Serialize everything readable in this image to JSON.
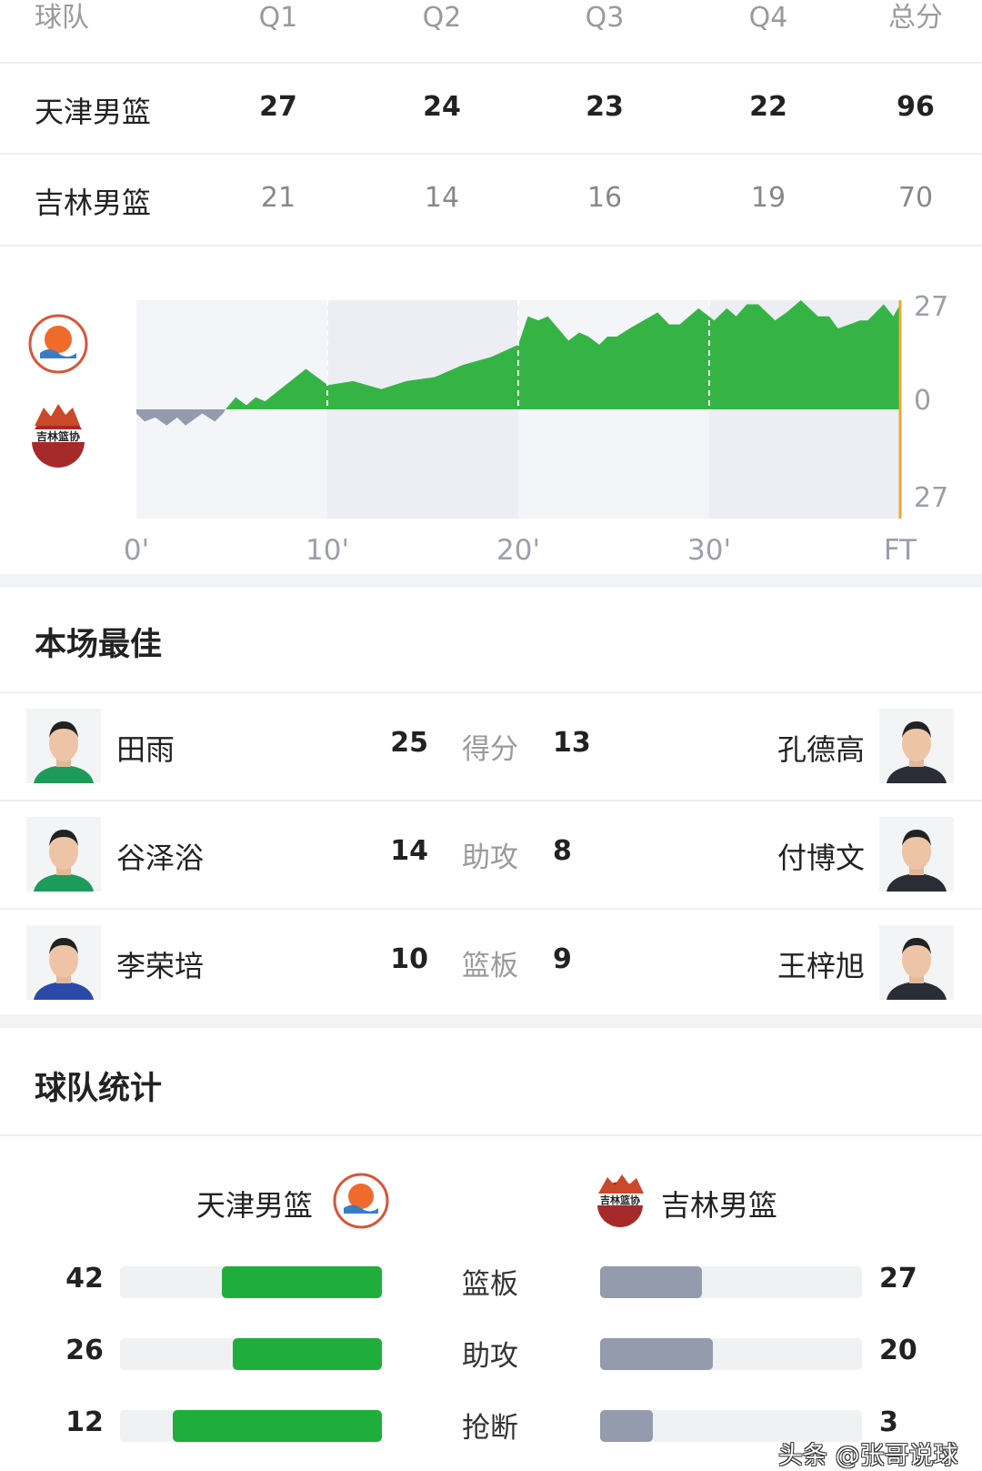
{
  "scoreboard": {
    "headers": [
      "球队",
      "Q1",
      "Q2",
      "Q3",
      "Q4",
      "总分"
    ],
    "rows": [
      {
        "team": "天津男篮",
        "scores": [
          "27",
          "24",
          "23",
          "22",
          "96"
        ]
      },
      {
        "team": "吉林男篮",
        "scores": [
          "21",
          "14",
          "16",
          "19",
          "70"
        ]
      }
    ]
  },
  "chart_data": {
    "type": "area",
    "x_tick_labels": [
      "0'",
      "10'",
      "20'",
      "30'",
      "FT"
    ],
    "y_tick_labels": [
      "27",
      "0",
      "27"
    ],
    "xlim": [
      0,
      40
    ],
    "ylim": [
      -27,
      27
    ],
    "colors": {
      "positive": "#35b445",
      "negative": "#939bad",
      "end_line": "#f0a830"
    },
    "series": [
      {
        "x": [
          0,
          0.43,
          0.99,
          1.58,
          2.14,
          2.57,
          3.45,
          4.11,
          4.54,
          4.67,
          5.2,
          5.76,
          6.25,
          6.74,
          8.88,
          10.03,
          11.35,
          12.83,
          14.14,
          15.63,
          17.1,
          18.6,
          20,
          20.5,
          21.05,
          21.55,
          22.63,
          23.19,
          23.68,
          24.24,
          24.67,
          25.16,
          25.82,
          27.3,
          27.9,
          28.45,
          29.44,
          30.26,
          30.92,
          31.41,
          31.97,
          32.57,
          33.45,
          34.05,
          34.8,
          35.7,
          36.28,
          36.74,
          37.34,
          37.9,
          38.3,
          39.14,
          39.64,
          40
        ],
        "y": [
          -1,
          -3,
          -2,
          -4,
          -2,
          -4,
          -1,
          -3,
          -1,
          0,
          3,
          1,
          3,
          2,
          10,
          6,
          7,
          5,
          7,
          8,
          11,
          13,
          16,
          23,
          22,
          23,
          17,
          19,
          18,
          16,
          18,
          18,
          20,
          24,
          21,
          21,
          25,
          22,
          25,
          23,
          26,
          26,
          22,
          24,
          27,
          23,
          23,
          20,
          21,
          22,
          22,
          26,
          23,
          26
        ]
      }
    ]
  },
  "best": {
    "title": "本场最佳",
    "rows": [
      {
        "left_name": "田雨",
        "left_value": "25",
        "label": "得分",
        "right_value": "13",
        "right_name": "孔德高",
        "left_jersey": "#1d9b5a",
        "right_jersey": "#2a2d36"
      },
      {
        "left_name": "谷泽浴",
        "left_value": "14",
        "label": "助攻",
        "right_value": "8",
        "right_name": "付博文",
        "left_jersey": "#1d9b5a",
        "right_jersey": "#2a2d36"
      },
      {
        "left_name": "李荣培",
        "left_value": "10",
        "label": "篮板",
        "right_value": "9",
        "right_name": "王梓旭",
        "left_jersey": "#2b4aa8",
        "right_jersey": "#2a2d36"
      }
    ]
  },
  "team_stats": {
    "title": "球队统计",
    "left_team": "天津男篮",
    "right_team": "吉林男篮",
    "left_color": "#1fae3c",
    "right_color": "#939bad",
    "rows": [
      {
        "label": "篮板",
        "left": "42",
        "right": "27",
        "left_frac": 0.61,
        "right_frac": 0.39
      },
      {
        "label": "助攻",
        "left": "26",
        "right": "20",
        "left_frac": 0.57,
        "right_frac": 0.43
      },
      {
        "label": "抢断",
        "left": "12",
        "right": "3",
        "left_frac": 0.8,
        "right_frac": 0.2
      }
    ]
  },
  "watermark": "头条 @张哥说球"
}
